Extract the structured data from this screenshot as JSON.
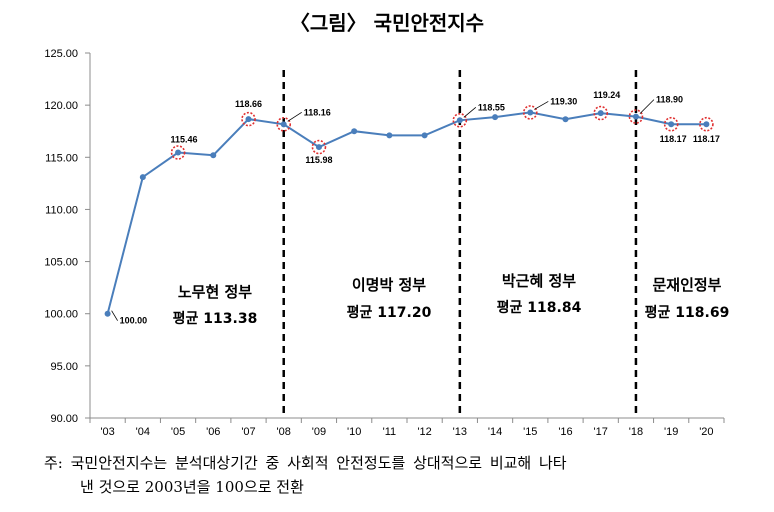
{
  "chart_data": {
    "type": "line",
    "title": "〈그림〉 국민안전지수",
    "categories": [
      "'03",
      "'04",
      "'05",
      "'06",
      "'07",
      "'08",
      "'09",
      "'10",
      "'11",
      "'12",
      "'13",
      "'14",
      "'15",
      "'16",
      "'17",
      "'18",
      "'19",
      "'20"
    ],
    "values": [
      100.0,
      113.1,
      115.46,
      115.2,
      118.66,
      118.16,
      115.98,
      117.5,
      117.1,
      117.1,
      118.55,
      118.85,
      119.3,
      118.65,
      119.24,
      118.9,
      118.17,
      118.17
    ],
    "data_labels": [
      {
        "index": 0,
        "text": "100.00"
      },
      {
        "index": 2,
        "text": "115.46"
      },
      {
        "index": 4,
        "text": "118.66"
      },
      {
        "index": 5,
        "text": "118.16"
      },
      {
        "index": 6,
        "text": "115.98"
      },
      {
        "index": 10,
        "text": "118.55"
      },
      {
        "index": 12,
        "text": "119.30"
      },
      {
        "index": 14,
        "text": "119.24"
      },
      {
        "index": 15,
        "text": "118.90"
      },
      {
        "index": 16,
        "text": "118.17"
      },
      {
        "index": 17,
        "text": "118.17"
      }
    ],
    "highlighted_indices": [
      2,
      4,
      5,
      6,
      10,
      12,
      14,
      15,
      16,
      17
    ],
    "y_ticks": [
      "90.00",
      "95.00",
      "100.00",
      "105.00",
      "110.00",
      "115.00",
      "120.00",
      "125.00"
    ],
    "ylim": [
      90,
      125
    ],
    "line_color": "#4a7ebb",
    "marker_highlight_color": "#e03030",
    "period_dividers_after_category": [
      "'08",
      "'13",
      "'18"
    ],
    "periods": [
      {
        "name": "노무현 정부",
        "avg": "평균 113.38",
        "span": [
          "'03",
          "'08"
        ]
      },
      {
        "name": "이명박 정부",
        "avg": "평균 117.20",
        "span": [
          "'08",
          "'13"
        ]
      },
      {
        "name": "박근혜 정부",
        "avg": "평균 118.84",
        "span": [
          "'13",
          "'18"
        ]
      },
      {
        "name": "문재인정부",
        "avg": "평균 118.69",
        "span": [
          "'18",
          "'20"
        ]
      }
    ]
  },
  "note": {
    "line1": "주: 국민안전지수는 분석대상기간 중 사회적 안전정도를 상대적으로 비교해 나타",
    "line2": "낸 것으로 2003년을 100으로 전환"
  }
}
